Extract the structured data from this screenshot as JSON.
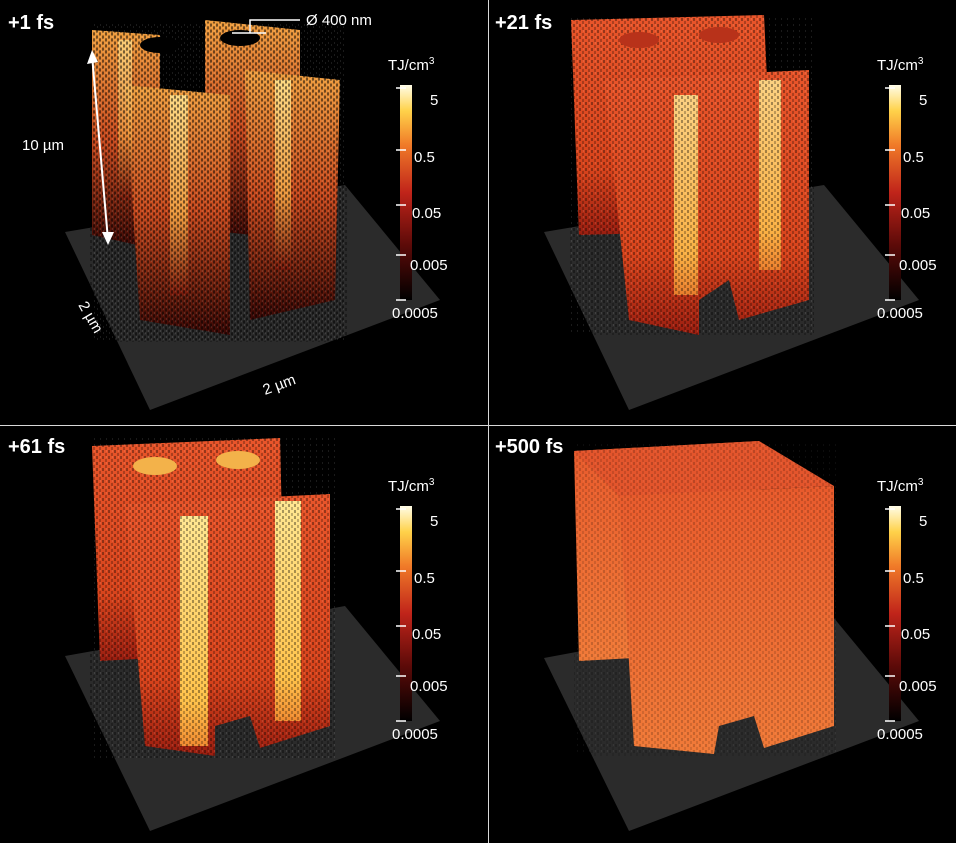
{
  "panels": [
    {
      "time": "+1 fs",
      "state": "sparse"
    },
    {
      "time": "+21 fs",
      "state": "dense"
    },
    {
      "time": "+61 fs",
      "state": "dense"
    },
    {
      "time": "+500 fs",
      "state": "uniform"
    }
  ],
  "colorbar": {
    "unit_main": "TJ/cm",
    "unit_sup": "3",
    "ticks": [
      "5",
      "0.5",
      "0.05",
      "0.005",
      "0.0005"
    ]
  },
  "annotations": {
    "diameter": "Ø 400 nm",
    "height": "10 µm",
    "width_left": "2 µm",
    "width_bottom": "2 µm"
  },
  "colors": {
    "background": "#000000",
    "divider": "#d9d9d9",
    "floor": "#2b2b2b",
    "hot": "#ffe680",
    "mid": "#e8662a",
    "cold": "#5a0a08"
  }
}
